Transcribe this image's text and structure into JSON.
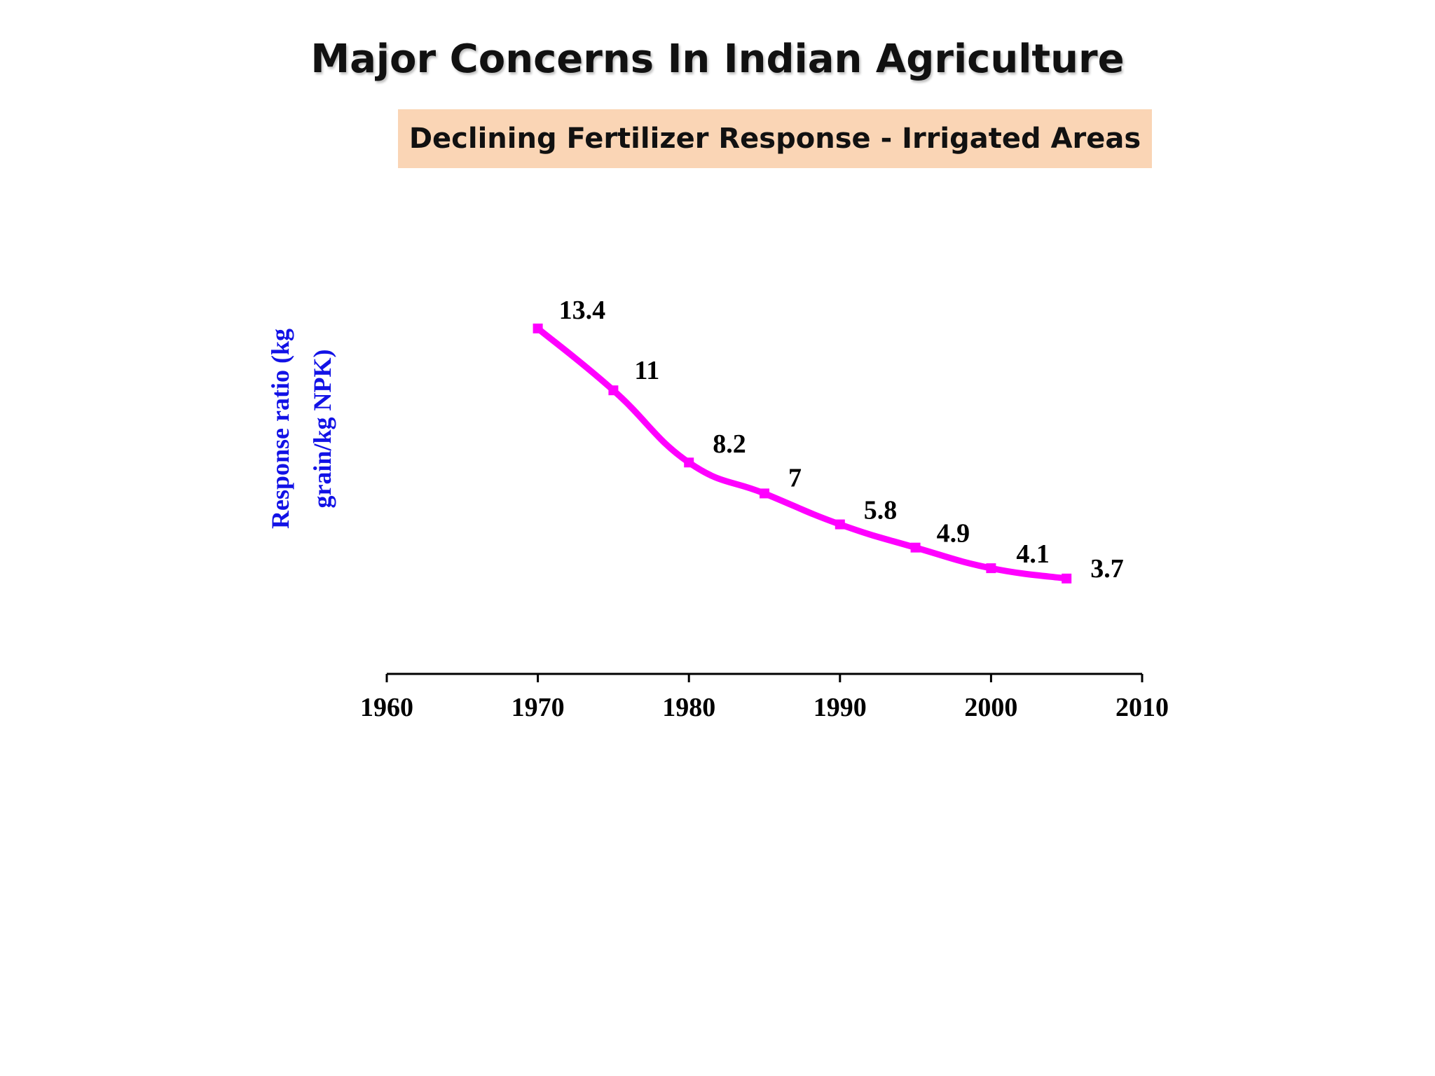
{
  "slide": {
    "title": "Major Concerns In  Indian Agriculture",
    "subtitle": "Declining Fertilizer Response - Irrigated Areas"
  },
  "chart_data": {
    "type": "line",
    "title": "",
    "ylabel": "Response ratio (kg\ngrain/kg NPK)",
    "xlabel": "",
    "x": [
      1970,
      1975,
      1980,
      1985,
      1990,
      1995,
      2000,
      2005
    ],
    "series": [
      {
        "values": [
          13.4,
          11,
          8.2,
          7,
          5.8,
          4.9,
          4.1,
          3.7
        ],
        "color": "#ff00ff"
      }
    ],
    "data_labels": [
      "13.4",
      "11",
      "8.2",
      "7",
      "5.8",
      "4.9",
      "4.1",
      "3.7"
    ],
    "xlim": [
      1960,
      2010
    ],
    "x_ticks": [
      1960,
      1970,
      1980,
      1990,
      2000,
      2010
    ],
    "ylim": [
      0,
      20
    ],
    "grid": false,
    "legend": "none",
    "smooth": true,
    "line_color": "#ff00ff",
    "ylabel_color": "#1212e6"
  }
}
